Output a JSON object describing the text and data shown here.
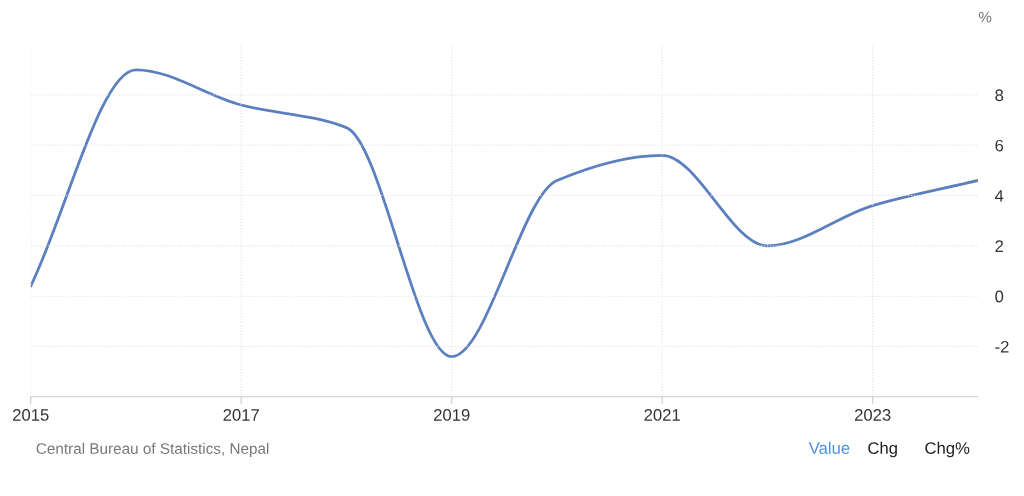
{
  "chart_data": {
    "type": "line",
    "ylabel": "%",
    "x": [
      2015,
      2016,
      2017,
      2018,
      2019,
      2020,
      2021,
      2022,
      2023,
      2024
    ],
    "series": [
      {
        "color": "#5b7fbf",
        "values": [
          0.4,
          9.0,
          7.6,
          6.7,
          -2.4,
          4.6,
          5.6,
          2.0,
          3.6,
          4.6
        ]
      }
    ],
    "xlim": [
      2015,
      2024
    ],
    "xticks": [
      2015,
      2017,
      2019,
      2021,
      2023
    ],
    "ylim": [
      -4,
      10
    ],
    "yticks": [
      -2,
      0,
      2,
      4,
      6,
      8
    ],
    "grid": true,
    "marker": "none",
    "line_style": "solid",
    "annotations": [
      "Central Bureau of Statistics, Nepal",
      "Value",
      "Chg",
      "Chg%"
    ]
  }
}
